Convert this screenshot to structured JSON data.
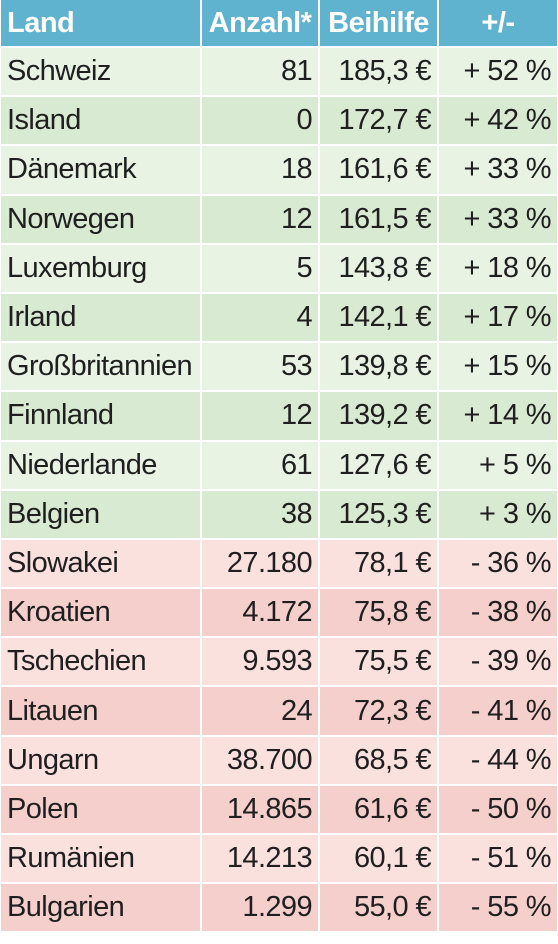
{
  "header": {
    "land": "Land",
    "anzahl": "Anzahl*",
    "beihilfe": "Beihilfe",
    "change": "+/-"
  },
  "rows": [
    {
      "land": "Schweiz",
      "anzahl": "81",
      "beihilfe": "185,3 €",
      "change": "+ 52 %"
    },
    {
      "land": "Island",
      "anzahl": "0",
      "beihilfe": "172,7 €",
      "change": "+ 42 %"
    },
    {
      "land": "Dänemark",
      "anzahl": "18",
      "beihilfe": "161,6 €",
      "change": "+ 33 %"
    },
    {
      "land": "Norwegen",
      "anzahl": "12",
      "beihilfe": "161,5 €",
      "change": "+ 33 %"
    },
    {
      "land": "Luxemburg",
      "anzahl": "5",
      "beihilfe": "143,8 €",
      "change": "+ 18 %"
    },
    {
      "land": "Irland",
      "anzahl": "4",
      "beihilfe": "142,1 €",
      "change": "+ 17 %"
    },
    {
      "land": "Großbritannien",
      "anzahl": "53",
      "beihilfe": "139,8 €",
      "change": "+ 15 %"
    },
    {
      "land": "Finnland",
      "anzahl": "12",
      "beihilfe": "139,2 €",
      "change": "+ 14 %"
    },
    {
      "land": "Niederlande",
      "anzahl": "61",
      "beihilfe": "127,6 €",
      "change": "+ 5 %"
    },
    {
      "land": "Belgien",
      "anzahl": "38",
      "beihilfe": "125,3 €",
      "change": "+ 3 %"
    },
    {
      "land": "Slowakei",
      "anzahl": "27.180",
      "beihilfe": "78,1 €",
      "change": "- 36 %"
    },
    {
      "land": "Kroatien",
      "anzahl": "4.172",
      "beihilfe": "75,8 €",
      "change": "- 38 %"
    },
    {
      "land": "Tschechien",
      "anzahl": "9.593",
      "beihilfe": "75,5 €",
      "change": "- 39 %"
    },
    {
      "land": "Litauen",
      "anzahl": "24",
      "beihilfe": "72,3 €",
      "change": "- 41 %"
    },
    {
      "land": "Ungarn",
      "anzahl": "38.700",
      "beihilfe": "68,5 €",
      "change": "- 44 %"
    },
    {
      "land": "Polen",
      "anzahl": "14.865",
      "beihilfe": "61,6 €",
      "change": "- 50 %"
    },
    {
      "land": "Rumänien",
      "anzahl": "14.213",
      "beihilfe": "60,1 €",
      "change": "- 51 %"
    },
    {
      "land": "Bulgarien",
      "anzahl": "1.299",
      "beihilfe": "55,0 €",
      "change": "- 55 %"
    }
  ],
  "colors": {
    "header_bg": "#5fb3cf",
    "positive_light": "#e8f3e4",
    "positive_dark": "#d9ead2",
    "negative_light": "#fbe1de",
    "negative_dark": "#f5cfcb"
  }
}
